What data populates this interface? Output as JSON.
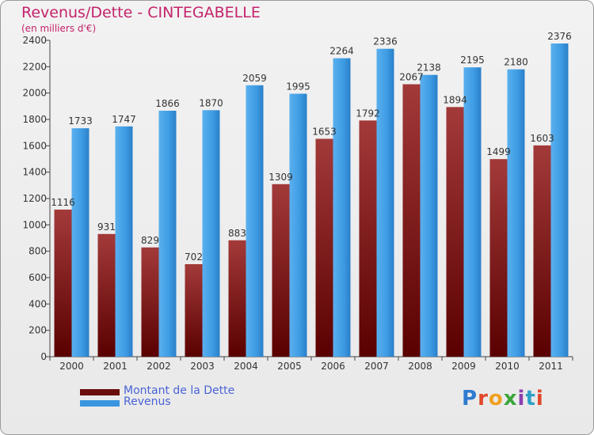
{
  "title": "Revenus/Dette - CINTEGABELLE",
  "subtitle": "(en milliers d'€)",
  "logo_text": "Proxiti",
  "colors": {
    "dette": "#7a1414",
    "revenus": "#3a96e0",
    "title": "#c4236b",
    "legend_text": "#4a63d6"
  },
  "legend": [
    {
      "label": "Montant de la Dette",
      "color": "#6b0d0d"
    },
    {
      "label": "Revenus",
      "color": "#3a96e0"
    }
  ],
  "chart_data": {
    "type": "bar",
    "title": "Revenus/Dette - CINTEGABELLE",
    "subtitle": "(en milliers d'€)",
    "categories": [
      "2000",
      "2001",
      "2002",
      "2003",
      "2004",
      "2005",
      "2006",
      "2007",
      "2008",
      "2009",
      "2010",
      "2011"
    ],
    "series": [
      {
        "name": "Montant de la Dette",
        "values": [
          1116,
          931,
          829,
          702,
          883,
          1309,
          1653,
          1792,
          2067,
          1894,
          1499,
          1603
        ]
      },
      {
        "name": "Revenus",
        "values": [
          1733,
          1747,
          1866,
          1870,
          2059,
          1995,
          2264,
          2336,
          2138,
          2195,
          2180,
          2376
        ]
      }
    ],
    "yticks": [
      0,
      200,
      400,
      600,
      800,
      1000,
      1200,
      1400,
      1600,
      1800,
      2000,
      2200,
      2400
    ],
    "ylim": [
      0,
      2400
    ],
    "grid": false,
    "legend_position": "bottom-left"
  }
}
